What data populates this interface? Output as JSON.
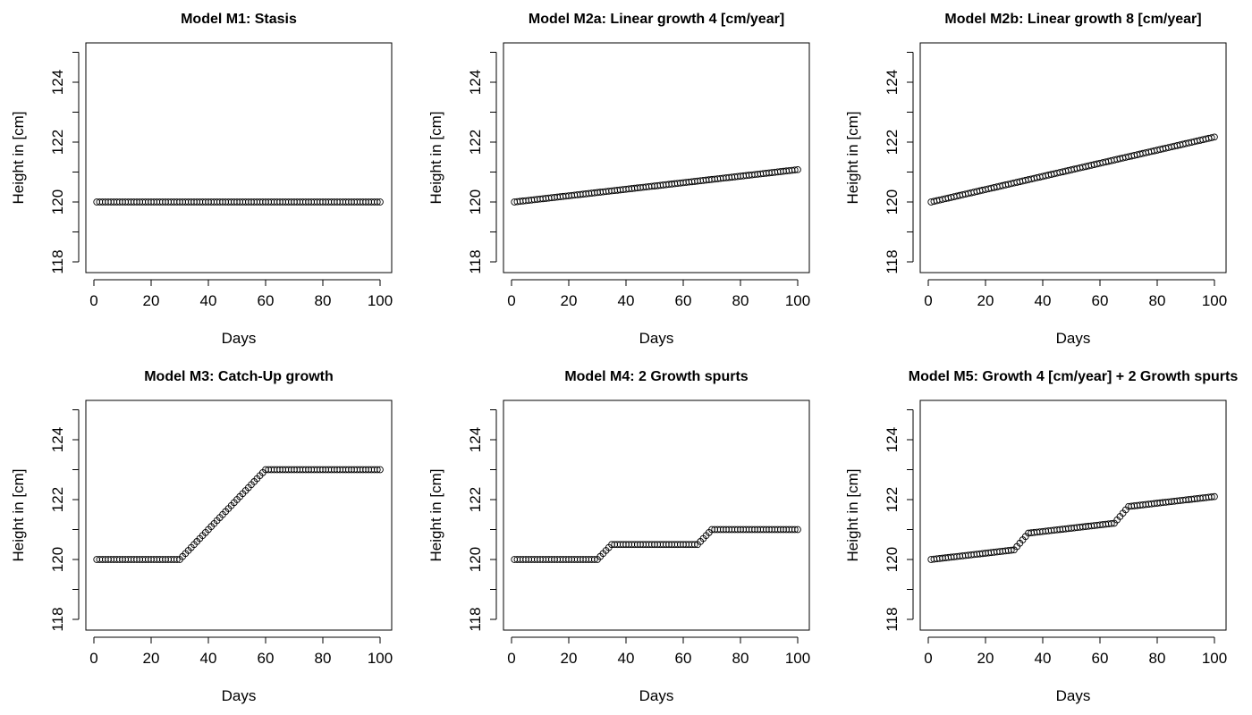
{
  "chart_data": [
    {
      "type": "scatter",
      "title": "Model M1: Stasis",
      "xlabel": "Days",
      "ylabel": "Height in [cm]",
      "xlim": [
        0,
        100
      ],
      "ylim": [
        118,
        125
      ],
      "xticks": [
        0,
        20,
        40,
        60,
        80,
        100
      ],
      "yticks": [
        118,
        120,
        122,
        124
      ],
      "grid": false,
      "marker": "open-circle",
      "series": [
        {
          "x_start": 1,
          "x_end": 100,
          "x_step": 1,
          "segments": [
            {
              "x_from": 1,
              "x_to": 100,
              "y_from": 120,
              "y_to": 120
            }
          ]
        }
      ]
    },
    {
      "type": "scatter",
      "title": "Model M2a: Linear growth 4 [cm/year]",
      "xlabel": "Days",
      "ylabel": "Height in [cm]",
      "xlim": [
        0,
        100
      ],
      "ylim": [
        118,
        125
      ],
      "xticks": [
        0,
        20,
        40,
        60,
        80,
        100
      ],
      "yticks": [
        118,
        120,
        122,
        124
      ],
      "grid": false,
      "marker": "open-circle",
      "series": [
        {
          "x_start": 1,
          "x_end": 100,
          "x_step": 1,
          "segments": [
            {
              "x_from": 1,
              "x_to": 100,
              "y_from": 120.0,
              "y_to": 121.08
            }
          ]
        }
      ]
    },
    {
      "type": "scatter",
      "title": "Model M2b: Linear growth 8 [cm/year]",
      "xlabel": "Days",
      "ylabel": "Height in [cm]",
      "xlim": [
        0,
        100
      ],
      "ylim": [
        118,
        125
      ],
      "xticks": [
        0,
        20,
        40,
        60,
        80,
        100
      ],
      "yticks": [
        118,
        120,
        122,
        124
      ],
      "grid": false,
      "marker": "open-circle",
      "series": [
        {
          "x_start": 1,
          "x_end": 100,
          "x_step": 1,
          "segments": [
            {
              "x_from": 1,
              "x_to": 100,
              "y_from": 120.0,
              "y_to": 122.17
            }
          ]
        }
      ]
    },
    {
      "type": "scatter",
      "title": "Model M3: Catch-Up growth",
      "xlabel": "Days",
      "ylabel": "Height in [cm]",
      "xlim": [
        0,
        100
      ],
      "ylim": [
        118,
        125
      ],
      "xticks": [
        0,
        20,
        40,
        60,
        80,
        100
      ],
      "yticks": [
        118,
        120,
        122,
        124
      ],
      "grid": false,
      "marker": "open-circle",
      "series": [
        {
          "x_start": 1,
          "x_end": 100,
          "x_step": 1,
          "segments": [
            {
              "x_from": 1,
              "x_to": 30,
              "y_from": 120,
              "y_to": 120
            },
            {
              "x_from": 30,
              "x_to": 60,
              "y_from": 120,
              "y_to": 123
            },
            {
              "x_from": 60,
              "x_to": 100,
              "y_from": 123,
              "y_to": 123
            }
          ]
        }
      ]
    },
    {
      "type": "scatter",
      "title": "Model M4: 2 Growth spurts",
      "xlabel": "Days",
      "ylabel": "Height in [cm]",
      "xlim": [
        0,
        100
      ],
      "ylim": [
        118,
        125
      ],
      "xticks": [
        0,
        20,
        40,
        60,
        80,
        100
      ],
      "yticks": [
        118,
        120,
        122,
        124
      ],
      "grid": false,
      "marker": "open-circle",
      "series": [
        {
          "x_start": 1,
          "x_end": 100,
          "x_step": 1,
          "segments": [
            {
              "x_from": 1,
              "x_to": 30,
              "y_from": 120,
              "y_to": 120
            },
            {
              "x_from": 30,
              "x_to": 35,
              "y_from": 120,
              "y_to": 120.5
            },
            {
              "x_from": 35,
              "x_to": 65,
              "y_from": 120.5,
              "y_to": 120.5
            },
            {
              "x_from": 65,
              "x_to": 70,
              "y_from": 120.5,
              "y_to": 121
            },
            {
              "x_from": 70,
              "x_to": 100,
              "y_from": 121,
              "y_to": 121
            }
          ]
        }
      ]
    },
    {
      "type": "scatter",
      "title": "Model M5: Growth 4 [cm/year] + 2 Growth spurts",
      "xlabel": "Days",
      "ylabel": "Height in [cm]",
      "xlim": [
        0,
        100
      ],
      "ylim": [
        118,
        125
      ],
      "xticks": [
        0,
        20,
        40,
        60,
        80,
        100
      ],
      "yticks": [
        118,
        120,
        122,
        124
      ],
      "grid": false,
      "marker": "open-circle",
      "series": [
        {
          "x_start": 1,
          "x_end": 100,
          "x_step": 1,
          "segments": [
            {
              "x_from": 1,
              "x_to": 30,
              "y_from": 120.0,
              "y_to": 120.32
            },
            {
              "x_from": 30,
              "x_to": 35,
              "y_from": 120.32,
              "y_to": 120.88
            },
            {
              "x_from": 35,
              "x_to": 65,
              "y_from": 120.88,
              "y_to": 121.21
            },
            {
              "x_from": 65,
              "x_to": 70,
              "y_from": 121.21,
              "y_to": 121.77
            },
            {
              "x_from": 70,
              "x_to": 100,
              "y_from": 121.77,
              "y_to": 122.1
            }
          ]
        }
      ]
    }
  ]
}
